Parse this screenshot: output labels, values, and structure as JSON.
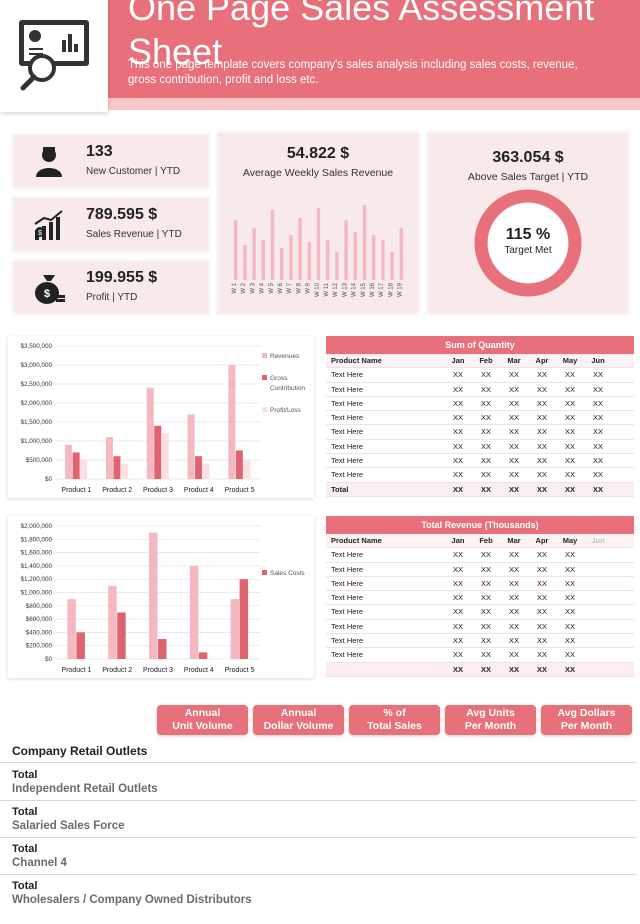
{
  "header": {
    "title": "One Page Sales Assessment Sheet",
    "description": "This one page template covers company's sales analysis including sales costs, revenue, gross contribution, profit and loss etc.",
    "logo_icon": "presentation-magnifier-icon"
  },
  "kpis": [
    {
      "value": "133",
      "label": "New Customer | YTD",
      "icon": "user-icon"
    },
    {
      "value": "789.595 $",
      "label": "Sales Revenue | YTD",
      "icon": "growth-chart-icon"
    },
    {
      "value": "199.955 $",
      "label": "Profit | YTD",
      "icon": "money-bag-icon"
    }
  ],
  "weekly": {
    "value": "54.822 $",
    "label": "Average Weekly Sales Revenue",
    "chart_data": {
      "type": "bar",
      "categories": [
        "W 1",
        "W 2",
        "W 3",
        "W 4",
        "W 5",
        "W 6",
        "W 7",
        "W 8",
        "W 9",
        "W 10",
        "W 11",
        "W 12",
        "W 13",
        "W 14",
        "W 15",
        "W 16",
        "W 17",
        "W 18",
        "W 19"
      ],
      "values": [
        60,
        35,
        52,
        40,
        70,
        32,
        45,
        62,
        38,
        72,
        40,
        28,
        60,
        48,
        75,
        45,
        40,
        28,
        52
      ],
      "ylim": [
        0,
        80
      ],
      "color": "#f3b8c0"
    }
  },
  "target": {
    "value": "363.054 $",
    "label": "Above Sales Target | YTD",
    "percent": "115 %",
    "percent_label": "Target Met",
    "ring_color": "#e8707a"
  },
  "chart1": {
    "chart_data": {
      "type": "bar",
      "categories": [
        "Product 1",
        "Product 2",
        "Product 3",
        "Product 4",
        "Product 5"
      ],
      "series": [
        {
          "name": "Revenues",
          "values": [
            900000,
            1100000,
            2400000,
            1700000,
            3000000
          ],
          "color": "#f3b8c0"
        },
        {
          "name": "Gross Contribution",
          "values": [
            700000,
            600000,
            1400000,
            600000,
            750000
          ],
          "color": "#e06470"
        },
        {
          "name": "Profit/Loss",
          "values": [
            500000,
            400000,
            1200000,
            400000,
            500000
          ],
          "color": "#fbe0e3"
        }
      ],
      "ylim": [
        0,
        3500000
      ],
      "yticks": [
        "$0",
        "$500,000",
        "$1,000,000",
        "$1,500,000",
        "$2,000,000",
        "$2,500,000",
        "$3,000,000",
        "$3,500,000"
      ],
      "legend": "right",
      "legend_lines": [
        [
          "Revenues"
        ],
        [
          "Gross",
          "Contribution"
        ],
        [
          "Profit/Loss"
        ]
      ]
    }
  },
  "chart2": {
    "chart_data": {
      "type": "bar",
      "categories": [
        "Product 1",
        "Product 2",
        "Product 3",
        "Product 4",
        "Product 5"
      ],
      "series": [
        {
          "name": "",
          "values": [
            900000,
            1100000,
            1900000,
            1400000,
            900000
          ],
          "color": "#f3b8c0"
        },
        {
          "name": "Sales Costs",
          "values": [
            400000,
            700000,
            300000,
            100000,
            1200000
          ],
          "color": "#e06470"
        }
      ],
      "ylim": [
        0,
        2000000
      ],
      "yticks": [
        "$0",
        "$200,000",
        "$400,000",
        "$600,000",
        "$800,000",
        "$1,000,000",
        "$1,200,000",
        "$1,400,000",
        "$1,600,000",
        "$1,800,000",
        "$2,000,000"
      ],
      "legend": "right",
      "legend_lines": [
        [
          "Sales Costs"
        ]
      ]
    }
  },
  "table1": {
    "title": "Sum of Quantity",
    "header": [
      "Product Name",
      "Jan",
      "Feb",
      "Mar",
      "Apr",
      "May",
      "Jun"
    ],
    "rows": [
      [
        "Text Here",
        "XX",
        "XX",
        "XX",
        "XX",
        "XX",
        "XX"
      ],
      [
        "Text Here",
        "XX",
        "XX",
        "XX",
        "XX",
        "XX",
        "XX"
      ],
      [
        "Text Here",
        "XX",
        "XX",
        "XX",
        "XX",
        "XX",
        "XX"
      ],
      [
        "Text Here",
        "XX",
        "XX",
        "XX",
        "XX",
        "XX",
        "XX"
      ],
      [
        "Text Here",
        "XX",
        "XX",
        "XX",
        "XX",
        "XX",
        "XX"
      ],
      [
        "Text Here",
        "XX",
        "XX",
        "XX",
        "XX",
        "XX",
        "XX"
      ],
      [
        "Text Here",
        "XX",
        "XX",
        "XX",
        "XX",
        "XX",
        "XX"
      ],
      [
        "Text Here",
        "XX",
        "XX",
        "XX",
        "XX",
        "XX",
        "XX"
      ]
    ],
    "total": [
      "Total",
      "XX",
      "XX",
      "XX",
      "XX",
      "XX",
      "XX"
    ]
  },
  "table2": {
    "title": "Total Revenue (Thousands)",
    "header": [
      "Product Name",
      "Jan",
      "Feb",
      "Mar",
      "Apr",
      "May",
      "Jun"
    ],
    "rows": [
      [
        "Text Here",
        "XX",
        "XX",
        "XX",
        "XX",
        "XX",
        ""
      ],
      [
        "Text Here",
        "XX",
        "XX",
        "XX",
        "XX",
        "XX",
        ""
      ],
      [
        "Text Here",
        "XX",
        "XX",
        "XX",
        "XX",
        "XX",
        ""
      ],
      [
        "Text Here",
        "XX",
        "XX",
        "XX",
        "XX",
        "XX",
        ""
      ],
      [
        "Text Here",
        "XX",
        "XX",
        "XX",
        "XX",
        "XX",
        ""
      ],
      [
        "Text Here",
        "XX",
        "XX",
        "XX",
        "XX",
        "XX",
        ""
      ],
      [
        "Text Here",
        "XX",
        "XX",
        "XX",
        "XX",
        "XX",
        ""
      ],
      [
        "Text Here",
        "XX",
        "XX",
        "XX",
        "XX",
        "XX",
        ""
      ]
    ],
    "total": [
      "",
      "XX",
      "XX",
      "XX",
      "XX",
      "XX",
      ""
    ]
  },
  "buttons": [
    [
      "Annual",
      "Unit Volume"
    ],
    [
      "Annual",
      "Dollar Volume"
    ],
    [
      "% of",
      "Total Sales"
    ],
    [
      "Avg Units",
      "Per Month"
    ],
    [
      "Avg Dollars",
      "Per Month"
    ]
  ],
  "outlets": {
    "title": "Company Retail Outlets",
    "items": [
      {
        "total": "Total",
        "name": "Independent Retail Outlets"
      },
      {
        "total": "Total",
        "name": "Salaried Sales Force"
      },
      {
        "total": "Total",
        "name": "Channel 4"
      },
      {
        "total": "Total",
        "name": "Wholesalers / Company Owned Distributors"
      }
    ]
  }
}
